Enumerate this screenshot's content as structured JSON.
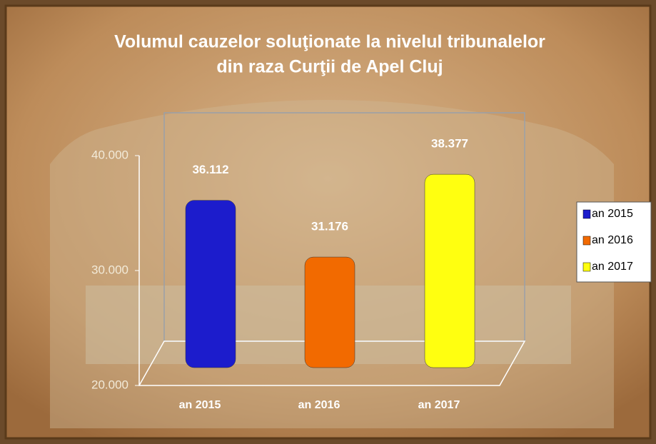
{
  "chart_data": {
    "type": "bar",
    "title": [
      "Volumul cauzelor soluţionate la nivelul tribunalelor",
      "din raza Curţii de Apel Cluj"
    ],
    "categories": [
      "an 2015",
      "an 2016",
      "an 2017"
    ],
    "values": [
      36112,
      31176,
      38377
    ],
    "value_labels": [
      "36.112",
      "31.176",
      "38.377"
    ],
    "colors": [
      "#1c1ccc",
      "#f26a00",
      "#ffff10"
    ],
    "ylim": [
      20000,
      40000
    ],
    "yticks": [
      {
        "value": 20000,
        "label": "20.000"
      },
      {
        "value": 30000,
        "label": "30.000"
      },
      {
        "value": 40000,
        "label": "40.000"
      }
    ],
    "legend": "right"
  }
}
